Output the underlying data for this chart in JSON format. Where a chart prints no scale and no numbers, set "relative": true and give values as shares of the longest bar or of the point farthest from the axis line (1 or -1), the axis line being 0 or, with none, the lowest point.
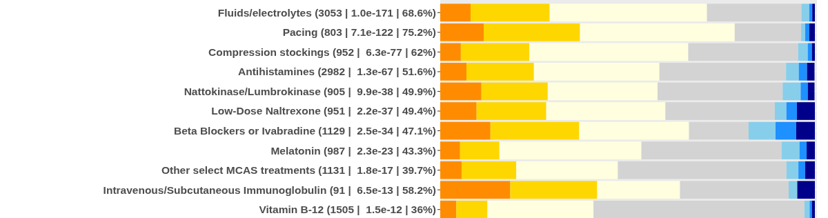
{
  "chart_data": {
    "type": "bar",
    "orientation": "horizontal",
    "stacked": true,
    "relative": true,
    "grid": "y",
    "legend": false,
    "categories": [
      "Fluids/electrolytes (3053 | 1.0e-171 | 68.6%)",
      "Pacing (803 | 7.1e-122 | 75.2%)",
      "Compression stockings (952 |  6.3e-77 | 62%)",
      "Antihistamines (2982 |  1.3e-67 | 51.6%)",
      "Nattokinase/Lumbrokinase (905 |  9.9e-38 | 49.9%)",
      "Low-Dose Naltrexone (951 |  2.2e-37 | 49.4%)",
      "Beta Blockers or Ivabradine (1129 |  2.5e-34 | 47.1%)",
      "Melatonin (987 |  2.3e-23 | 43.3%)",
      "Other select MCAS treatments (1131 |  1.8e-17 | 39.7%)",
      "Intravenous/Subcutaneous Immunoglobulin (91 |  6.5e-13 | 58.2%)",
      "Vitamin B-12 (1505 |  1.5e-12 | 36%)"
    ],
    "series": [
      {
        "color": "#ff8c00",
        "values": [
          0.081,
          0.116,
          0.055,
          0.07,
          0.11,
          0.097,
          0.134,
          0.053,
          0.057,
          0.187,
          0.043
        ]
      },
      {
        "color": "#ffd700",
        "values": [
          0.211,
          0.257,
          0.183,
          0.18,
          0.177,
          0.186,
          0.237,
          0.105,
          0.146,
          0.232,
          0.083
        ]
      },
      {
        "color": "#ffffe0",
        "values": [
          0.42,
          0.413,
          0.424,
          0.335,
          0.293,
          0.318,
          0.293,
          0.379,
          0.271,
          0.221,
          0.283
        ]
      },
      {
        "color": "#d3d3d3",
        "values": [
          0.252,
          0.177,
          0.293,
          0.338,
          0.334,
          0.292,
          0.159,
          0.374,
          0.45,
          0.29,
          0.563
        ]
      },
      {
        "color": "#87ceeb",
        "values": [
          0.021,
          0.011,
          0.026,
          0.034,
          0.048,
          0.031,
          0.072,
          0.048,
          0.032,
          0.023,
          0.014
        ]
      },
      {
        "color": "#1e90ff",
        "values": [
          0.008,
          0.011,
          0.011,
          0.022,
          0.019,
          0.028,
          0.055,
          0.019,
          0.018,
          0,
          0.006
        ]
      },
      {
        "color": "#00008b",
        "values": [
          0.007,
          0.015,
          0.008,
          0.02,
          0.018,
          0.048,
          0.05,
          0.022,
          0.026,
          0.047,
          0.008
        ]
      }
    ]
  }
}
